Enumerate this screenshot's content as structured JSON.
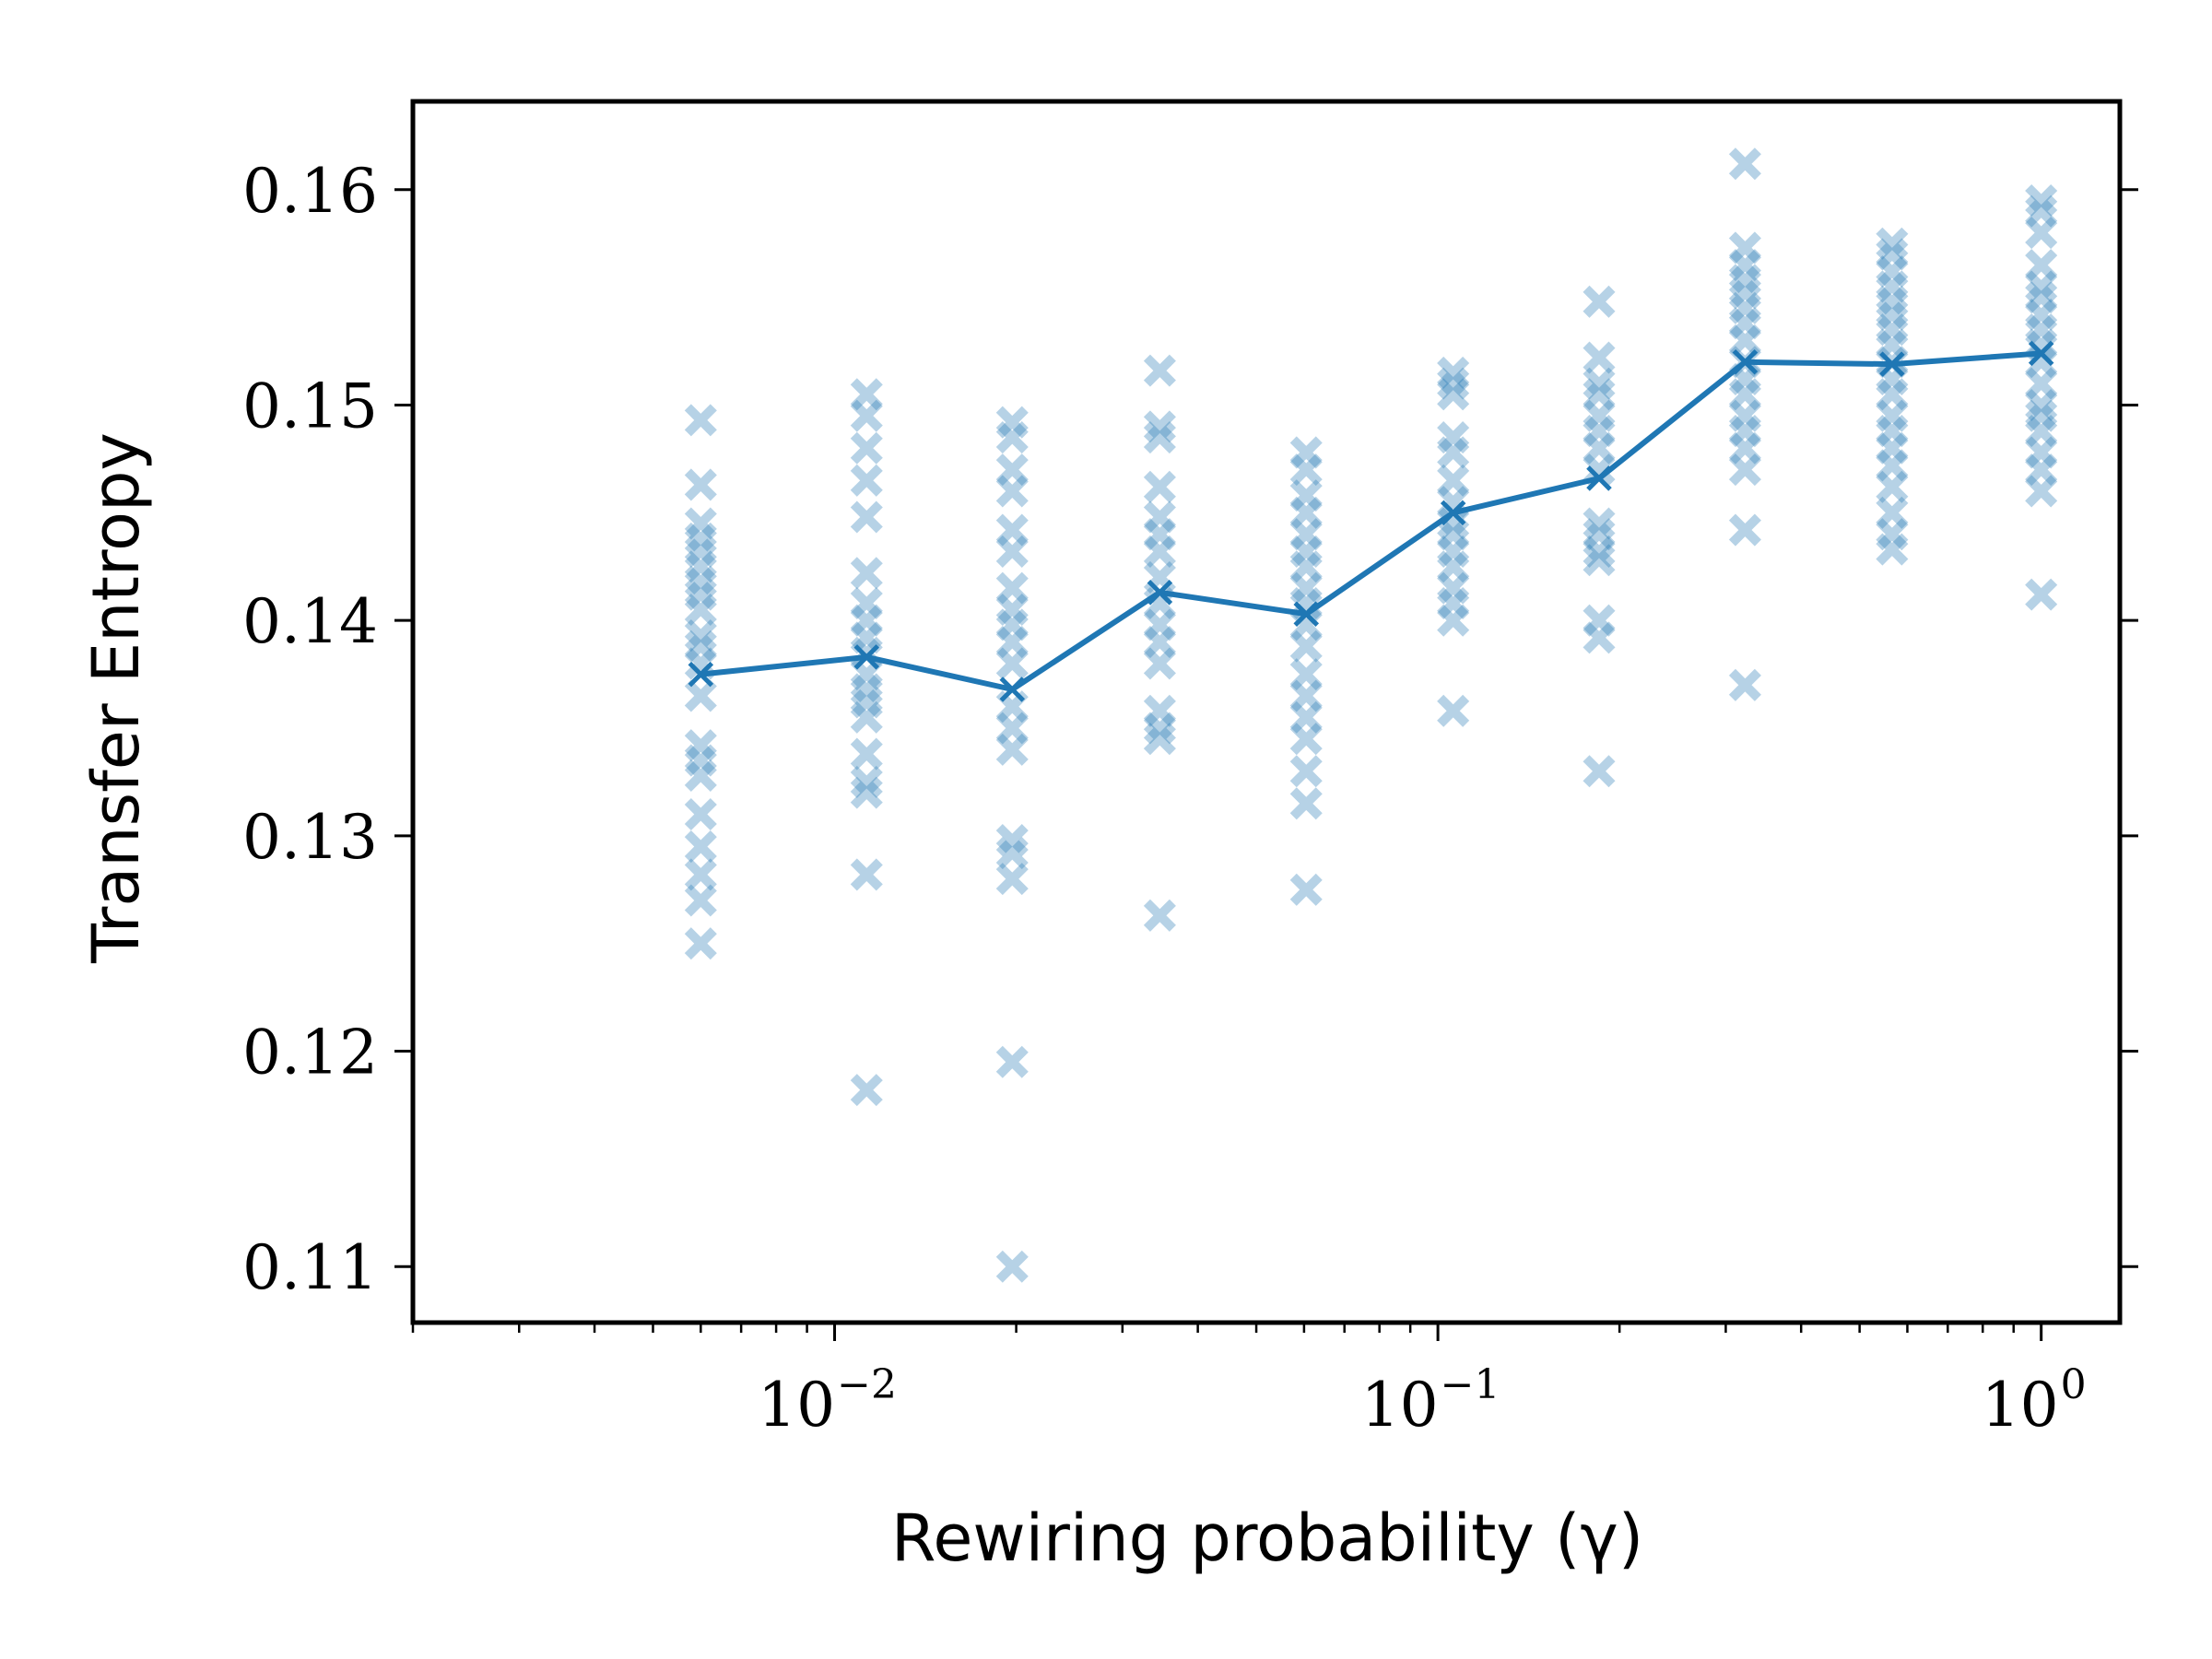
{
  "chart_data": {
    "type": "scatter",
    "xlabel": "Rewiring probability (γ)",
    "ylabel": "Transfer Entropy",
    "x_scale": "log",
    "xlim": [
      0.002,
      1.35
    ],
    "ylim": [
      0.1074,
      0.1641
    ],
    "x_ticks": [
      {
        "value": 0.01,
        "base": "10",
        "exp": "−2"
      },
      {
        "value": 0.1,
        "base": "10",
        "exp": "−1"
      },
      {
        "value": 1,
        "base": "10",
        "exp": "0"
      }
    ],
    "y_ticks": [
      {
        "value": 0.11,
        "label": "0.11"
      },
      {
        "value": 0.12,
        "label": "0.12"
      },
      {
        "value": 0.13,
        "label": "0.13"
      },
      {
        "value": 0.14,
        "label": "0.14"
      },
      {
        "value": 0.15,
        "label": "0.15"
      },
      {
        "value": 0.16,
        "label": "0.16"
      }
    ],
    "grid": false,
    "legend": null,
    "colors": {
      "line": "#1f77b4",
      "samples": "#1f77b4"
    },
    "mean": {
      "x": [
        0.006,
        0.0113,
        0.0197,
        0.0346,
        0.0605,
        0.106,
        0.185,
        0.323,
        0.566,
        1.0
      ],
      "y": [
        0.1375,
        0.1383,
        0.1368,
        0.1413,
        0.1403,
        0.145,
        0.1466,
        0.152,
        0.1519,
        0.1524
      ]
    },
    "samples": [
      {
        "x": 0.006,
        "y": [
          0.1493,
          0.1463,
          0.1445,
          0.1438,
          0.1432,
          0.1425,
          0.1418,
          0.1412,
          0.1405,
          0.1393,
          0.1388,
          0.138,
          0.1365,
          0.1342,
          0.1335,
          0.1328,
          0.131,
          0.1295,
          0.1282,
          0.127,
          0.125
        ]
      },
      {
        "x": 0.0113,
        "y": [
          0.1505,
          0.1495,
          0.148,
          0.1465,
          0.1448,
          0.1422,
          0.1408,
          0.14,
          0.1392,
          0.1385,
          0.1375,
          0.1368,
          0.1362,
          0.1355,
          0.1338,
          0.1325,
          0.132,
          0.1282,
          0.1182
        ]
      },
      {
        "x": 0.0197,
        "y": [
          0.1492,
          0.1485,
          0.147,
          0.146,
          0.1442,
          0.1432,
          0.1415,
          0.1405,
          0.1398,
          0.139,
          0.138,
          0.136,
          0.135,
          0.134,
          0.1298,
          0.1292,
          0.128,
          0.1195,
          0.11
        ]
      },
      {
        "x": 0.0346,
        "y": [
          0.1516,
          0.149,
          0.1485,
          0.1462,
          0.1448,
          0.144,
          0.1432,
          0.142,
          0.1408,
          0.1398,
          0.139,
          0.138,
          0.1358,
          0.135,
          0.1345,
          0.1263
        ]
      },
      {
        "x": 0.0605,
        "y": [
          0.1478,
          0.147,
          0.1458,
          0.145,
          0.144,
          0.1432,
          0.1425,
          0.1415,
          0.1408,
          0.1398,
          0.1388,
          0.1375,
          0.1365,
          0.1355,
          0.1345,
          0.133,
          0.1315,
          0.1275
        ]
      },
      {
        "x": 0.106,
        "y": [
          0.1515,
          0.151,
          0.1505,
          0.1485,
          0.1478,
          0.1465,
          0.1455,
          0.1445,
          0.144,
          0.1432,
          0.1425,
          0.1415,
          0.1408,
          0.14,
          0.1358
        ]
      },
      {
        "x": 0.185,
        "y": [
          0.1548,
          0.1522,
          0.151,
          0.1505,
          0.1495,
          0.1488,
          0.148,
          0.147,
          0.1445,
          0.144,
          0.1432,
          0.1428,
          0.14,
          0.1392,
          0.133
        ]
      },
      {
        "x": 0.323,
        "y": [
          0.1612,
          0.1573,
          0.1565,
          0.1558,
          0.1552,
          0.1545,
          0.1538,
          0.153,
          0.152,
          0.1512,
          0.1505,
          0.1495,
          0.1488,
          0.148,
          0.147,
          0.1442,
          0.137
        ]
      },
      {
        "x": 0.566,
        "y": [
          0.1575,
          0.157,
          0.1562,
          0.1555,
          0.1548,
          0.1542,
          0.1535,
          0.1528,
          0.152,
          0.1512,
          0.1505,
          0.1495,
          0.1488,
          0.148,
          0.1472,
          0.1462,
          0.145,
          0.144,
          0.1433
        ]
      },
      {
        "x": 1.0,
        "y": [
          0.1595,
          0.159,
          0.158,
          0.1565,
          0.1555,
          0.155,
          0.1542,
          0.1535,
          0.1528,
          0.152,
          0.151,
          0.15,
          0.1495,
          0.1488,
          0.1478,
          0.147,
          0.146,
          0.1412
        ]
      }
    ]
  }
}
